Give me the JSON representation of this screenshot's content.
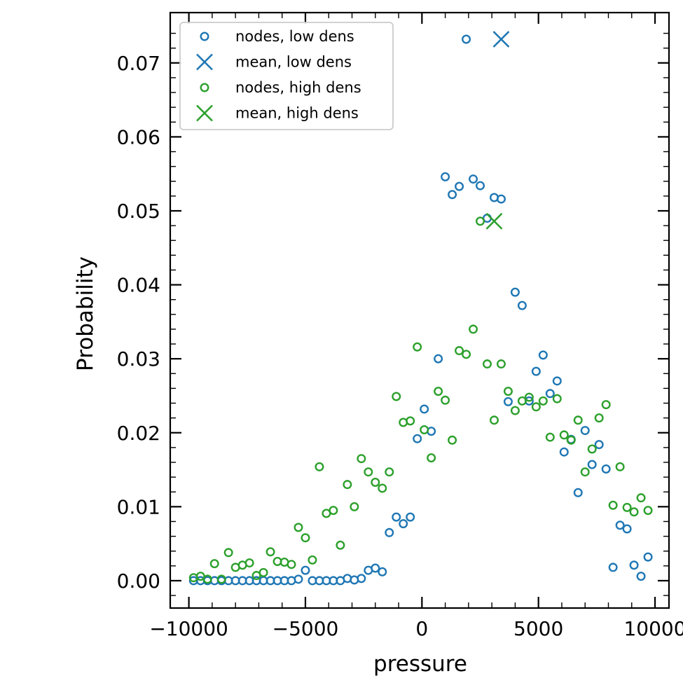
{
  "chart_data": {
    "type": "scatter",
    "title": "",
    "xlabel": "pressure",
    "ylabel": "Probability",
    "xlim": [
      -10800,
      10600
    ],
    "ylim": [
      -0.0037,
      0.0768
    ],
    "x_ticks": [
      -10000,
      -5000,
      0,
      5000,
      10000
    ],
    "x_tick_labels": [
      "−10000",
      "−5000",
      "0",
      "5000",
      "10000"
    ],
    "y_ticks": [
      0.0,
      0.01,
      0.02,
      0.03,
      0.04,
      0.05,
      0.06,
      0.07
    ],
    "y_tick_labels": [
      "0.00",
      "0.01",
      "0.02",
      "0.03",
      "0.04",
      "0.05",
      "0.06",
      "0.07"
    ],
    "grid": false,
    "legend_position": "top-left",
    "legend": [
      {
        "label": "nodes, low dens",
        "marker": "circle",
        "color": "#1f77b4"
      },
      {
        "label": "mean, low dens",
        "marker": "x",
        "color": "#1f77b4"
      },
      {
        "label": "nodes, high dens",
        "marker": "circle",
        "color": "#2ca02c"
      },
      {
        "label": "mean, high dens",
        "marker": "x",
        "color": "#2ca02c"
      }
    ],
    "series": [
      {
        "name": "nodes, low dens",
        "marker": "circle",
        "color": "#1f77b4",
        "x": [
          -9800,
          -9500,
          -9200,
          -8900,
          -8600,
          -8300,
          -8000,
          -7700,
          -7400,
          -7100,
          -6800,
          -6500,
          -6200,
          -5900,
          -5600,
          -5300,
          -5000,
          -4700,
          -4400,
          -4100,
          -3800,
          -3500,
          -3200,
          -2900,
          -2600,
          -2300,
          -2000,
          -1700,
          -1400,
          -1100,
          -800,
          -500,
          -200,
          100,
          400,
          700,
          1000,
          1300,
          1600,
          1900,
          2200,
          2500,
          2800,
          3100,
          3400,
          3700,
          4000,
          4300,
          4600,
          4900,
          5200,
          5500,
          5800,
          6100,
          6400,
          6700,
          7000,
          7300,
          7600,
          7900,
          8200,
          8500,
          8800,
          9100,
          9400,
          9700
        ],
        "y": [
          0.0,
          0.0,
          0.0,
          0.0,
          0.0,
          0.0,
          0.0,
          0.0,
          0.0,
          0.0,
          0.0,
          0.0,
          0.0,
          0.0,
          0.0,
          0.0002,
          0.0014,
          0.0,
          0.0,
          0.0,
          0.0,
          0.0,
          0.0003,
          0.0001,
          0.0003,
          0.0014,
          0.0017,
          0.0012,
          0.0065,
          0.0086,
          0.0077,
          0.0086,
          0.0192,
          0.0232,
          0.0202,
          0.03,
          0.0546,
          0.0522,
          0.0533,
          0.0732,
          0.0543,
          0.0534,
          0.049,
          0.0518,
          0.0516,
          0.0242,
          0.039,
          0.0372,
          0.0243,
          0.0283,
          0.0305,
          0.0253,
          0.027,
          0.0174,
          0.0191,
          0.0119,
          0.0203,
          0.0157,
          0.0184,
          0.0151,
          0.0018,
          0.0075,
          0.007,
          0.0021,
          0.0006,
          0.0032
        ]
      },
      {
        "name": "mean, low dens",
        "marker": "x",
        "color": "#1f77b4",
        "x": [
          3400
        ],
        "y": [
          0.0732
        ]
      },
      {
        "name": "nodes, high dens",
        "marker": "circle",
        "color": "#2ca02c",
        "x": [
          -9800,
          -9500,
          -9200,
          -8900,
          -8600,
          -8300,
          -8000,
          -7700,
          -7400,
          -7100,
          -6800,
          -6500,
          -6200,
          -5900,
          -5600,
          -5300,
          -5000,
          -4700,
          -4400,
          -4100,
          -3800,
          -3500,
          -3200,
          -2900,
          -2600,
          -2300,
          -2000,
          -1700,
          -1400,
          -1100,
          -800,
          -500,
          -200,
          100,
          400,
          700,
          1000,
          1300,
          1600,
          1900,
          2200,
          2500,
          2800,
          3100,
          3400,
          3700,
          4000,
          4300,
          4600,
          4900,
          5200,
          5500,
          5800,
          6100,
          6400,
          6700,
          7000,
          7300,
          7600,
          7900,
          8200,
          8500,
          8800,
          9100,
          9400,
          9700
        ],
        "y": [
          0.0004,
          0.0006,
          0.0002,
          0.0023,
          0.0002,
          0.0038,
          0.0018,
          0.0021,
          0.0024,
          0.0007,
          0.0011,
          0.0039,
          0.0026,
          0.0025,
          0.0022,
          0.0072,
          0.0058,
          0.0028,
          0.0154,
          0.0091,
          0.0095,
          0.0048,
          0.013,
          0.01,
          0.0165,
          0.0147,
          0.0133,
          0.0125,
          0.0147,
          0.0249,
          0.0214,
          0.0216,
          0.0316,
          0.0204,
          0.0166,
          0.0256,
          0.0244,
          0.019,
          0.0311,
          0.0306,
          0.034,
          0.0486,
          0.0293,
          0.0217,
          0.0293,
          0.0256,
          0.023,
          0.0243,
          0.0248,
          0.0235,
          0.0243,
          0.0194,
          0.0246,
          0.0197,
          0.019,
          0.0217,
          0.0147,
          0.0178,
          0.022,
          0.0238,
          0.0102,
          0.0154,
          0.0099,
          0.0093,
          0.0112,
          0.0095
        ]
      },
      {
        "name": "mean, high dens",
        "marker": "x",
        "color": "#2ca02c",
        "x": [
          3100
        ],
        "y": [
          0.0486
        ]
      }
    ]
  }
}
